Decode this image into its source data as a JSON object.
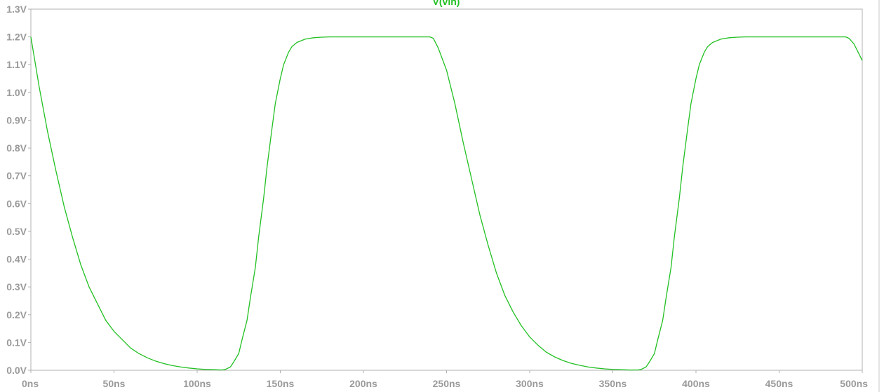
{
  "chart_data": {
    "type": "line",
    "title": "V(vin)",
    "xlabel": "",
    "ylabel": "",
    "xlim": [
      0,
      500
    ],
    "ylim": [
      0,
      1.3
    ],
    "x_ticks": [
      "0ns",
      "50ns",
      "100ns",
      "150ns",
      "200ns",
      "250ns",
      "300ns",
      "350ns",
      "400ns",
      "450ns",
      "500ns"
    ],
    "y_ticks": [
      "0.0V",
      "0.1V",
      "0.2V",
      "0.3V",
      "0.4V",
      "0.5V",
      "0.6V",
      "0.7V",
      "0.8V",
      "0.9V",
      "1.0V",
      "1.1V",
      "1.2V",
      "1.3V"
    ],
    "grid": false,
    "series": [
      {
        "name": "V(vin)",
        "color": "#22c022",
        "x": [
          0,
          5,
          10,
          15,
          20,
          25,
          30,
          35,
          40,
          45,
          50,
          55,
          60,
          65,
          70,
          75,
          80,
          85,
          90,
          95,
          100,
          105,
          110,
          115,
          117,
          120,
          122,
          125,
          127,
          130,
          132,
          135,
          137,
          140,
          142,
          145,
          147,
          150,
          152,
          155,
          157,
          160,
          165,
          170,
          175,
          180,
          185,
          190,
          195,
          200,
          205,
          210,
          215,
          220,
          225,
          230,
          235,
          240,
          242,
          245,
          250,
          255,
          260,
          265,
          270,
          275,
          280,
          285,
          290,
          295,
          300,
          305,
          310,
          315,
          320,
          325,
          330,
          335,
          340,
          345,
          350,
          355,
          360,
          365,
          367,
          370,
          372,
          375,
          377,
          380,
          382,
          385,
          387,
          390,
          392,
          395,
          397,
          400,
          402,
          405,
          407,
          410,
          415,
          420,
          425,
          430,
          435,
          440,
          445,
          450,
          455,
          460,
          465,
          470,
          475,
          480,
          485,
          490,
          492,
          495,
          500
        ],
        "y": [
          1.2,
          1.02,
          0.86,
          0.72,
          0.59,
          0.48,
          0.38,
          0.3,
          0.24,
          0.18,
          0.14,
          0.11,
          0.08,
          0.06,
          0.045,
          0.033,
          0.024,
          0.017,
          0.012,
          0.008,
          0.005,
          0.003,
          0.002,
          0.001,
          0.003,
          0.012,
          0.03,
          0.06,
          0.11,
          0.18,
          0.26,
          0.37,
          0.48,
          0.62,
          0.73,
          0.87,
          0.96,
          1.05,
          1.1,
          1.145,
          1.165,
          1.18,
          1.192,
          1.197,
          1.199,
          1.2,
          1.2,
          1.2,
          1.2,
          1.2,
          1.2,
          1.2,
          1.2,
          1.2,
          1.2,
          1.2,
          1.2,
          1.2,
          1.195,
          1.16,
          1.08,
          0.96,
          0.82,
          0.69,
          0.56,
          0.45,
          0.35,
          0.27,
          0.21,
          0.16,
          0.12,
          0.09,
          0.065,
          0.048,
          0.035,
          0.025,
          0.018,
          0.012,
          0.008,
          0.005,
          0.003,
          0.002,
          0.001,
          0.001,
          0.003,
          0.012,
          0.03,
          0.06,
          0.11,
          0.18,
          0.26,
          0.37,
          0.48,
          0.62,
          0.73,
          0.87,
          0.96,
          1.05,
          1.1,
          1.145,
          1.165,
          1.18,
          1.192,
          1.197,
          1.199,
          1.2,
          1.2,
          1.2,
          1.2,
          1.2,
          1.2,
          1.2,
          1.2,
          1.2,
          1.2,
          1.2,
          1.2,
          1.2,
          1.195,
          1.175,
          1.115
        ]
      }
    ]
  }
}
